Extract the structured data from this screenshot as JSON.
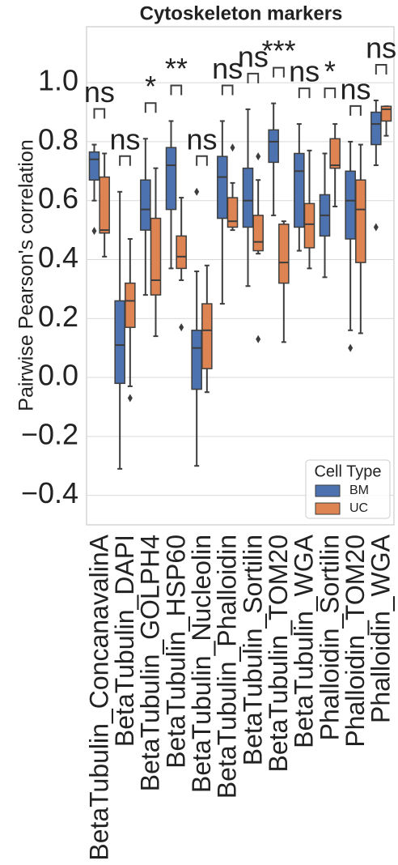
{
  "chart_data": {
    "type": "box",
    "title": "Cytoskeleton markers",
    "y_label": "Pairwise Pearson's correlation",
    "categories": [
      "BetaTubulin_ConcanavalinA",
      "BetaTubulin_DAPI",
      "BetaTubulin_GOLPH4",
      "BetaTubulin_HSP60",
      "BetaTubulin_Nucleolin",
      "BetaTubulin_Phalloidin",
      "BetaTubulin_Sortilin",
      "BetaTubulin_TOM20",
      "BetaTubulin_WGA",
      "Phalloidin_Sortilin",
      "Phalloidin_TOM20",
      "Phalloidin_WGA"
    ],
    "annotations": [
      "ns",
      "ns",
      "*",
      "**",
      "ns",
      "ns",
      "ns",
      "***",
      "ns",
      "*",
      "ns",
      "ns"
    ],
    "legend_title": "Cell Type",
    "legend_position": "lower right",
    "grid": true,
    "ylim": [
      -0.5,
      1.19
    ],
    "yticks": [
      {
        "value": -0.4,
        "label": "−0.4"
      },
      {
        "value": -0.2,
        "label": "−0.2"
      },
      {
        "value": 0,
        "label": "0.0"
      },
      {
        "value": 0.2,
        "label": "0.2"
      },
      {
        "value": 0.4,
        "label": "0.4"
      },
      {
        "value": 0.6,
        "label": "0.6"
      },
      {
        "value": 0.8,
        "label": "0.8"
      },
      {
        "value": 1,
        "label": "1.0"
      }
    ],
    "series": [
      {
        "name": "BM",
        "color": "#4c72b0",
        "stats": [
          {
            "q1": 0.67,
            "median": 0.74,
            "q3": 0.765,
            "whislo": 0.6,
            "whishi": 0.79,
            "fliers": [
              0.497
            ]
          },
          {
            "q1": -0.02,
            "median": 0.11,
            "q3": 0.26,
            "whislo": -0.31,
            "whishi": 0.63,
            "fliers": []
          },
          {
            "q1": 0.5,
            "median": 0.57,
            "q3": 0.67,
            "whislo": 0.28,
            "whishi": 0.81,
            "fliers": []
          },
          {
            "q1": 0.57,
            "median": 0.72,
            "q3": 0.78,
            "whislo": 0.37,
            "whishi": 0.87,
            "fliers": []
          },
          {
            "q1": -0.04,
            "median": 0.1,
            "q3": 0.16,
            "whislo": -0.3,
            "whishi": 0.36,
            "fliers": [
              0.63
            ]
          },
          {
            "q1": 0.54,
            "median": 0.68,
            "q3": 0.75,
            "whislo": 0.25,
            "whishi": 0.87,
            "fliers": []
          },
          {
            "q1": 0.51,
            "median": 0.6,
            "q3": 0.71,
            "whislo": 0.31,
            "whishi": 0.91,
            "fliers": []
          },
          {
            "q1": 0.73,
            "median": 0.8,
            "q3": 0.84,
            "whislo": 0.55,
            "whishi": 0.93,
            "fliers": []
          },
          {
            "q1": 0.51,
            "median": 0.7,
            "q3": 0.76,
            "whislo": 0.43,
            "whishi": 0.86,
            "fliers": []
          },
          {
            "q1": 0.48,
            "median": 0.55,
            "q3": 0.62,
            "whislo": 0.34,
            "whishi": 0.76,
            "fliers": []
          },
          {
            "q1": 0.47,
            "median": 0.6,
            "q3": 0.7,
            "whislo": 0.16,
            "whishi": 0.8,
            "fliers": [
              0.1
            ]
          },
          {
            "q1": 0.79,
            "median": 0.86,
            "q3": 0.9,
            "whislo": 0.72,
            "whishi": 0.94,
            "fliers": [
              0.51
            ]
          }
        ]
      },
      {
        "name": "UC",
        "color": "#dd8452",
        "stats": [
          {
            "q1": 0.49,
            "median": 0.5,
            "q3": 0.68,
            "whislo": 0.41,
            "whishi": 0.76,
            "fliers": []
          },
          {
            "q1": 0.17,
            "median": 0.26,
            "q3": 0.32,
            "whislo": -0.03,
            "whishi": 0.47,
            "fliers": [
              -0.07
            ]
          },
          {
            "q1": 0.28,
            "median": 0.33,
            "q3": 0.54,
            "whislo": 0.14,
            "whishi": 0.71,
            "fliers": []
          },
          {
            "q1": 0.37,
            "median": 0.41,
            "q3": 0.48,
            "whislo": 0.33,
            "whishi": 0.61,
            "fliers": [
              0.17
            ]
          },
          {
            "q1": 0.03,
            "median": 0.16,
            "q3": 0.25,
            "whislo": -0.05,
            "whishi": 0.38,
            "fliers": []
          },
          {
            "q1": 0.51,
            "median": 0.53,
            "q3": 0.61,
            "whislo": 0.5,
            "whishi": 0.66,
            "fliers": [
              0.78
            ]
          },
          {
            "q1": 0.43,
            "median": 0.46,
            "q3": 0.55,
            "whislo": 0.42,
            "whishi": 0.67,
            "fliers": [
              0.75,
              0.13
            ]
          },
          {
            "q1": 0.32,
            "median": 0.39,
            "q3": 0.52,
            "whislo": 0.12,
            "whishi": 0.53,
            "fliers": []
          },
          {
            "q1": 0.44,
            "median": 0.52,
            "q3": 0.59,
            "whislo": 0.37,
            "whishi": 0.77,
            "fliers": []
          },
          {
            "q1": 0.71,
            "median": 0.72,
            "q3": 0.81,
            "whislo": 0.58,
            "whishi": 0.86,
            "fliers": []
          },
          {
            "q1": 0.39,
            "median": 0.57,
            "q3": 0.67,
            "whislo": 0.15,
            "whishi": 0.79,
            "fliers": []
          },
          {
            "q1": 0.87,
            "median": 0.91,
            "q3": 0.92,
            "whislo": 0.82,
            "whishi": 0.92,
            "fliers": []
          }
        ]
      }
    ]
  }
}
